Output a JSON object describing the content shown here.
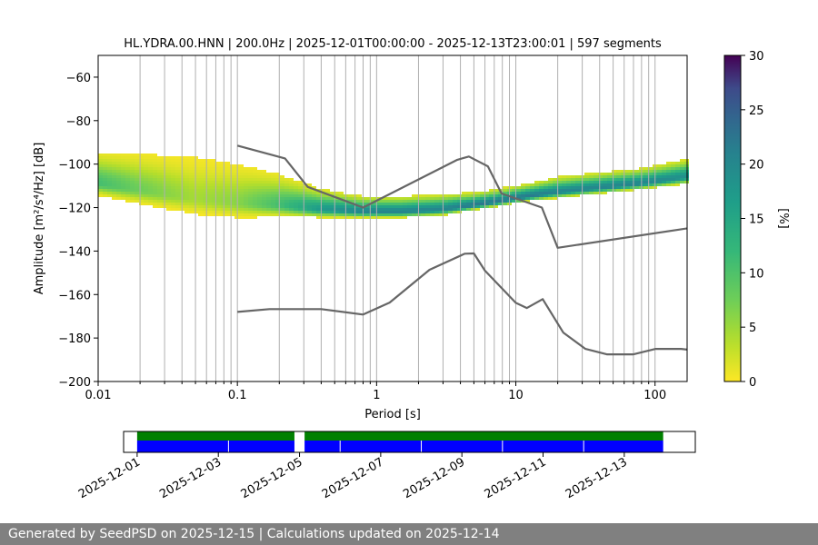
{
  "chart_data": [
    {
      "type": "heatmap",
      "title": "HL.YDRA.00.HNN | 200.0Hz | 2025-12-01T00:00:00 - 2025-12-13T23:00:01 | 597 segments",
      "xlabel": "Period [s]",
      "ylabel": "Amplitude [m²/s⁴/Hz] [dB]",
      "x_scale": "log",
      "xlim": [
        0.01,
        170
      ],
      "ylim": [
        -200,
        -50
      ],
      "x_ticks": [
        0.01,
        0.1,
        1,
        10,
        100
      ],
      "x_tick_labels": [
        "0.01",
        "0.1",
        "1",
        "10",
        "100"
      ],
      "y_ticks": [
        -200,
        -180,
        -160,
        -140,
        -120,
        -100,
        -80,
        -60
      ],
      "y_tick_labels": [
        "−200",
        "−180",
        "−160",
        "−140",
        "−120",
        "−100",
        "−80",
        "−60"
      ],
      "grid": "vertical lines at log decades",
      "colormap": "viridis reversed (0 yellow to 30 dark purple)",
      "colorbar": {
        "label": "[%]",
        "range": [
          0,
          30
        ],
        "ticks": [
          0,
          5,
          10,
          15,
          20,
          25,
          30
        ],
        "tick_labels": [
          "0",
          "5",
          "10",
          "15",
          "20",
          "25",
          "30"
        ]
      },
      "density_ridge": {
        "description": "mode of probability density, per period",
        "period": [
          0.01,
          0.02,
          0.05,
          0.1,
          0.2,
          0.4,
          0.8,
          1.5,
          3,
          5,
          8,
          12,
          20,
          40,
          80,
          170
        ],
        "mode_db": [
          -109,
          -112,
          -116,
          -118,
          -119,
          -121,
          -122,
          -122,
          -121,
          -119,
          -117,
          -115,
          -113,
          -111,
          -109,
          -106
        ],
        "spread_db": [
          12,
          14,
          16,
          15,
          12,
          8,
          6,
          6,
          6,
          5,
          5,
          5,
          6,
          6,
          6,
          7
        ]
      },
      "series": [
        {
          "name": "",
          "kind": "noise model upper bound",
          "color": "#666666",
          "x": [
            0.1,
            0.22,
            0.32,
            0.8,
            3.8,
            4.6,
            6.3,
            7.9,
            15.4,
            20,
            354.8
          ],
          "y": [
            -91.5,
            -97.4,
            -110.5,
            -120,
            -98,
            -96.5,
            -101,
            -113.5,
            -120,
            -138.5,
            -126.5
          ]
        },
        {
          "name": "",
          "kind": "noise model lower bound",
          "color": "#666666",
          "x": [
            0.1,
            0.17,
            0.4,
            0.8,
            1.24,
            2.4,
            4.3,
            5,
            6,
            10,
            12,
            15.6,
            21.9,
            31.6,
            45,
            70,
            101,
            154,
            178
          ],
          "y": [
            -168,
            -166.7,
            -166.7,
            -169.2,
            -163.7,
            -148.6,
            -141.2,
            -141.1,
            -149,
            -163.8,
            -166.2,
            -162.1,
            -177.5,
            -185,
            -187.5,
            -187.5,
            -185,
            -185,
            -185.5
          ]
        }
      ]
    },
    {
      "type": "timeline",
      "x_tick_labels": [
        "2025-12-01",
        "2025-12-03",
        "2025-12-05",
        "2025-12-07",
        "2025-12-09",
        "2025-12-11",
        "2025-12-13"
      ],
      "xlim": [
        "2025-11-30T16:00",
        "2025-12-14T18:00"
      ],
      "top_bar": {
        "color": "#008000",
        "segments": [
          [
            "2025-12-01T00:00",
            "2025-12-04T21:00"
          ],
          [
            "2025-12-05T03:00",
            "2025-12-13T23:00"
          ]
        ]
      },
      "bottom_bar": {
        "color": "#0000ff",
        "segments": [
          [
            "2025-12-01T00:00",
            "2025-12-04T21:00"
          ],
          [
            "2025-12-05T03:00",
            "2025-12-13T23:00"
          ]
        ],
        "gap_markers": [
          "2025-12-03T06:00",
          "2025-12-06T00:00",
          "2025-12-10T00:00",
          "2025-12-12T00:00"
        ],
        "segment_dividers": [
          "2025-12-08T00:00"
        ]
      }
    }
  ],
  "footer": {
    "text": "Generated by SeedPSD on 2025-12-15 | Calculations updated on 2025-12-14"
  }
}
